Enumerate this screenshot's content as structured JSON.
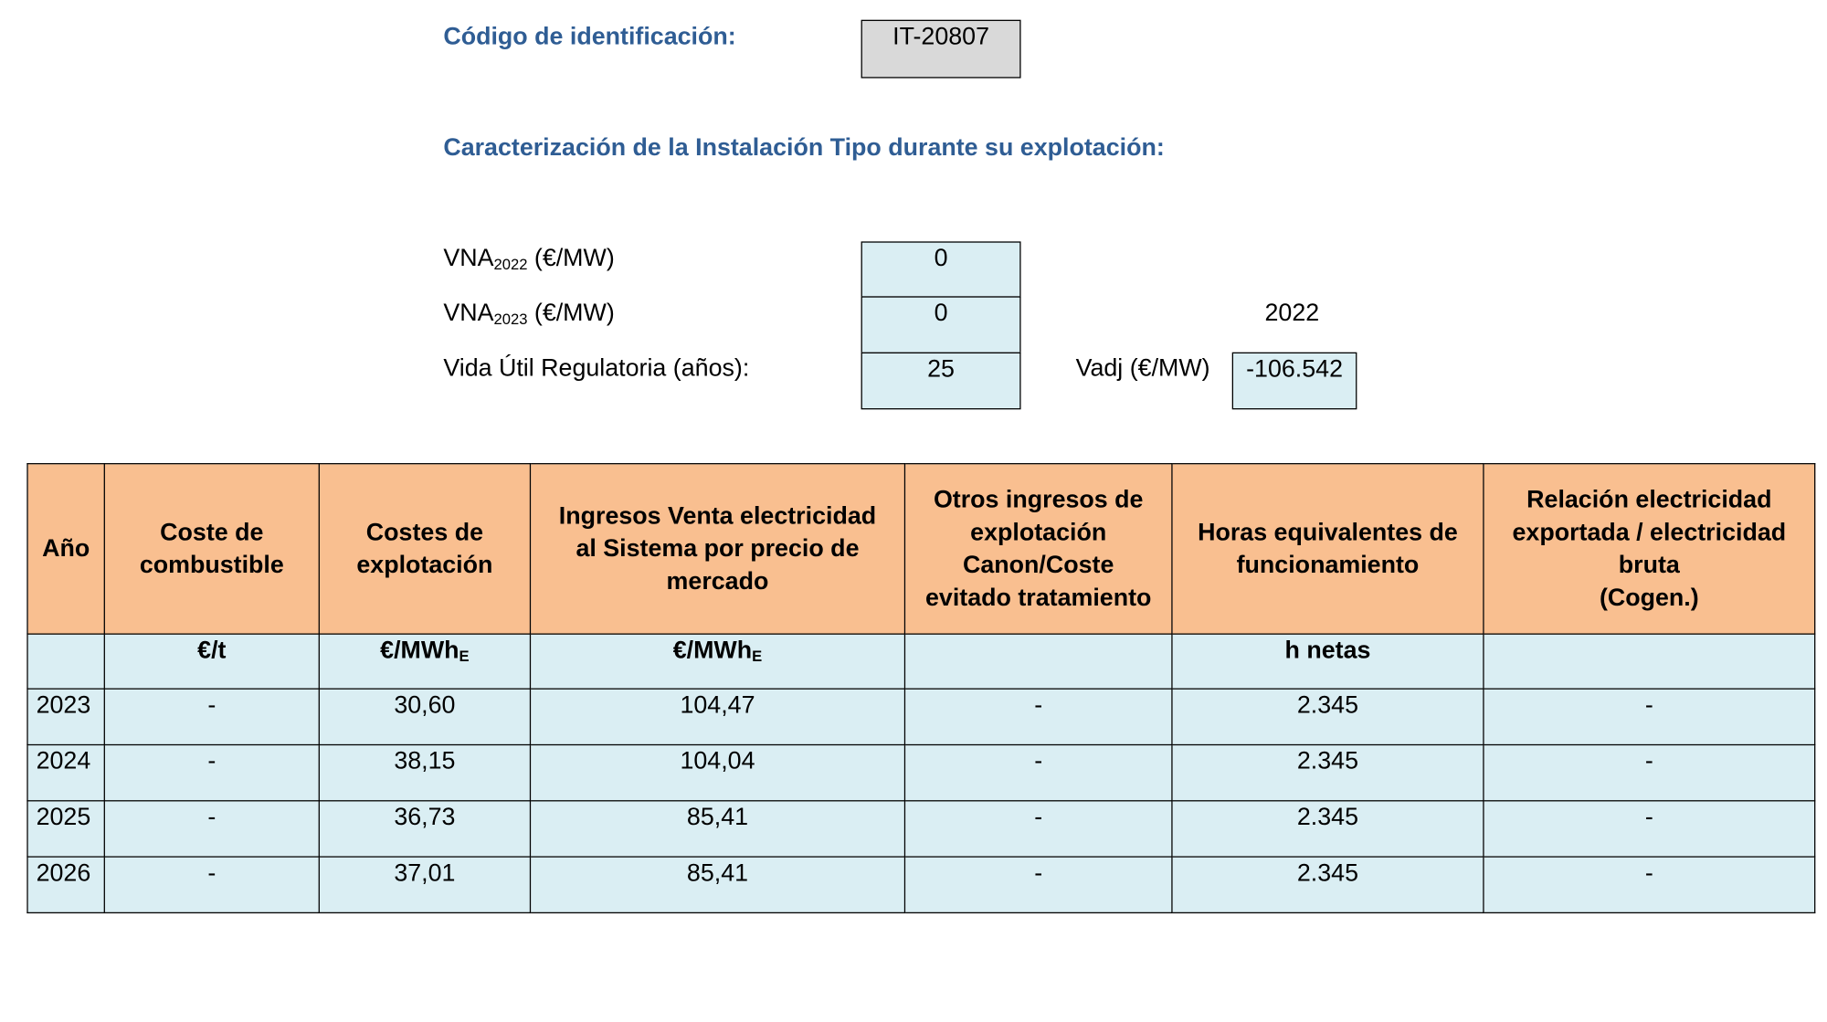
{
  "header": {
    "id_label": "Código de identificación:",
    "id_value": "IT-20807",
    "subtitle": "Caracterización de la Instalación Tipo durante su explotación:"
  },
  "params": {
    "vna2022_label": "VNA",
    "vna2022_sub": "2022",
    "vna2022_unit": " (€/MW)",
    "vna2022_value": "0",
    "vna2023_label": "VNA",
    "vna2023_sub": "2023",
    "vna2023_unit": " (€/MW)",
    "vna2023_value": "0",
    "year_label": "2022",
    "vida_label": "Vida Útil Regulatoria (años):",
    "vida_value": "25",
    "vadj_label": "Vadj (€/MW)",
    "vadj_value": "-106.542"
  },
  "table": {
    "headers": [
      "Año",
      "Coste de\ncombustible",
      "Costes de\nexplotación",
      "Ingresos Venta electricidad\nal Sistema por precio de\nmercado",
      "Otros ingresos de\nexplotación\nCanon/Coste\nevitado tratamiento",
      "Horas equivalentes de\nfuncionamiento",
      "Relación electricidad\nexportada / electricidad\nbruta\n(Cogen.)"
    ],
    "units": {
      "col1": "€/t",
      "col2_main": "€/MWh",
      "col2_sub": "E",
      "col3_main": "€/MWh",
      "col3_sub": "E",
      "col5": "h netas"
    },
    "rows": [
      [
        "2023",
        "-",
        "30,60",
        "104,47",
        "-",
        "2.345",
        "-"
      ],
      [
        "2024",
        "-",
        "38,15",
        "104,04",
        "-",
        "2.345",
        "-"
      ],
      [
        "2025",
        "-",
        "36,73",
        "85,41",
        "-",
        "2.345",
        "-"
      ],
      [
        "2026",
        "-",
        "37,01",
        "85,41",
        "-",
        "2.345",
        "-"
      ]
    ]
  }
}
